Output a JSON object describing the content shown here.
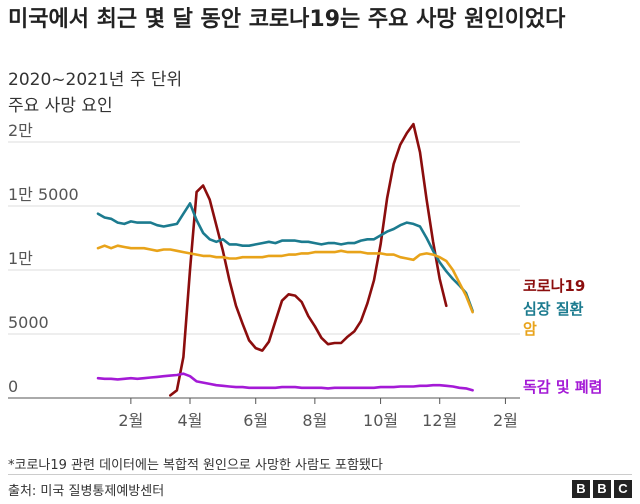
{
  "header": {
    "title": "미국에서 최근 몇 달 동안 코로나19는 주요 사망 원인이었다",
    "subtitle": "2020~2021년 주 단위",
    "unit_label": "주요 사망 요인"
  },
  "footer": {
    "footnote": "*코로나19 관련 데이터에는  복합적 원인으로 사망한 사람도 포함됐다",
    "source": "출처: 미국 질병통제예방센터",
    "logo": [
      "B",
      "B",
      "C"
    ]
  },
  "chart_data": {
    "type": "line",
    "ylim": [
      0,
      20000
    ],
    "yticks": [
      {
        "value": 0,
        "label": "0"
      },
      {
        "value": 5000,
        "label": "5000"
      },
      {
        "value": 10000,
        "label": "1만"
      },
      {
        "value": 15000,
        "label": "1만 5000"
      },
      {
        "value": 20000,
        "label": "2만"
      }
    ],
    "xlim": [
      0,
      63
    ],
    "xticks": [
      {
        "week": 5,
        "label": "2월"
      },
      {
        "week": 14,
        "label": "4월"
      },
      {
        "week": 24,
        "label": "6월"
      },
      {
        "week": 33,
        "label": "8월"
      },
      {
        "week": 43,
        "label": "10월"
      },
      {
        "week": 52,
        "label": "12월"
      },
      {
        "week": 62,
        "label": "2월"
      }
    ],
    "grid": true,
    "series": [
      {
        "name": "코로나19",
        "color": "#8b0d0d",
        "values": [
          null,
          null,
          null,
          null,
          null,
          null,
          null,
          null,
          null,
          null,
          null,
          200,
          600,
          3200,
          10000,
          16100,
          16600,
          15500,
          13500,
          11500,
          9200,
          7200,
          5800,
          4500,
          3900,
          3700,
          4400,
          6000,
          7600,
          8100,
          8000,
          7500,
          6400,
          5600,
          4700,
          4200,
          4300,
          4300,
          4800,
          5200,
          6000,
          7400,
          9200,
          12000,
          15600,
          18300,
          19800,
          20700,
          21400,
          19200,
          15500,
          12200,
          9300,
          7200
        ]
      },
      {
        "name": "심장 질환",
        "color": "#1c7b8f",
        "values": [
          14400,
          14100,
          14000,
          13700,
          13600,
          13800,
          13700,
          13700,
          13700,
          13500,
          13400,
          13500,
          13600,
          14400,
          15200,
          13900,
          12900,
          12400,
          12200,
          12400,
          12000,
          12000,
          11900,
          11900,
          12000,
          12100,
          12200,
          12100,
          12300,
          12300,
          12300,
          12200,
          12200,
          12100,
          12000,
          12100,
          12100,
          12000,
          12100,
          12100,
          12300,
          12400,
          12400,
          12700,
          13000,
          13200,
          13500,
          13700,
          13600,
          13400,
          12500,
          11500,
          10600,
          9900,
          9300,
          8800,
          8200,
          6800
        ]
      },
      {
        "name": "암",
        "color": "#e8a31a",
        "values": [
          11700,
          11900,
          11700,
          11900,
          11800,
          11700,
          11700,
          11700,
          11600,
          11500,
          11600,
          11600,
          11500,
          11400,
          11300,
          11200,
          11100,
          11100,
          11000,
          11000,
          10900,
          10900,
          11000,
          11000,
          11000,
          11000,
          11100,
          11100,
          11100,
          11200,
          11200,
          11300,
          11300,
          11400,
          11400,
          11400,
          11400,
          11500,
          11400,
          11400,
          11400,
          11300,
          11300,
          11300,
          11200,
          11200,
          11000,
          10900,
          10800,
          11200,
          11300,
          11200,
          11000,
          10700,
          10000,
          9000,
          8000,
          6700
        ]
      },
      {
        "name": "독감 및 폐렴",
        "color": "#a41ad6",
        "values": [
          1550,
          1500,
          1500,
          1450,
          1500,
          1550,
          1500,
          1550,
          1600,
          1650,
          1700,
          1750,
          1800,
          1900,
          1700,
          1300,
          1200,
          1100,
          1000,
          950,
          900,
          850,
          850,
          800,
          800,
          800,
          800,
          800,
          850,
          850,
          850,
          800,
          800,
          800,
          800,
          750,
          800,
          800,
          800,
          800,
          800,
          800,
          800,
          850,
          850,
          850,
          900,
          900,
          900,
          950,
          950,
          1000,
          1000,
          950,
          900,
          800,
          750,
          600
        ]
      }
    ]
  }
}
